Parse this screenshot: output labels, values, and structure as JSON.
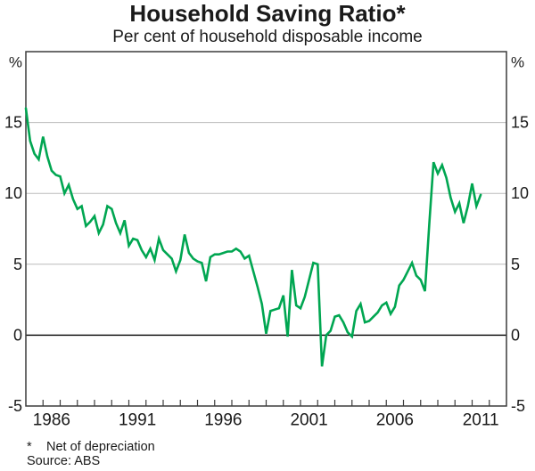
{
  "title": "Household Saving Ratio*",
  "subtitle": "Per cent of household disposable income",
  "footnote": {
    "marker": "*",
    "text": "Net of depreciation"
  },
  "source": "Source: ABS",
  "colors": {
    "line": "#00a651",
    "gridline": "#bcbcbc",
    "zero_line": "#000000",
    "frame": "#3c3c3c",
    "text": "#1a1a1a"
  },
  "chart_data": {
    "type": "line",
    "title": "Household Saving Ratio*",
    "subtitle": "Per cent of household disposable income",
    "unit_label": "%",
    "xlim": [
      1985,
      2013
    ],
    "ylim": [
      -5,
      20
    ],
    "y_ticks": [
      -5,
      0,
      5,
      10,
      15
    ],
    "y_gridlines": [
      5,
      10,
      15
    ],
    "x_minor_tick_years": [
      1986,
      1987,
      1988,
      1989,
      1990,
      1991,
      1992,
      1993,
      1994,
      1995,
      1996,
      1997,
      1998,
      1999,
      2000,
      2001,
      2002,
      2003,
      2004,
      2005,
      2006,
      2007,
      2008,
      2009,
      2010,
      2011,
      2012
    ],
    "x_labels": [
      1986,
      1991,
      1996,
      2001,
      2006,
      2011
    ],
    "grid": "horizontal-only",
    "legend": "none",
    "series": [
      {
        "name": "Household saving ratio (quarterly, per cent)",
        "start_year": 1985,
        "period_years": 0.25,
        "values": [
          16.0,
          13.7,
          12.8,
          12.4,
          14.0,
          12.6,
          11.6,
          11.3,
          11.2,
          10.0,
          10.6,
          9.6,
          8.9,
          9.1,
          7.7,
          8.0,
          8.4,
          7.2,
          7.8,
          9.1,
          8.9,
          7.9,
          7.2,
          8.1,
          6.3,
          6.8,
          6.7,
          6.0,
          5.5,
          6.1,
          5.3,
          6.8,
          6.0,
          5.7,
          5.4,
          4.5,
          5.3,
          7.1,
          5.8,
          5.4,
          5.2,
          5.1,
          3.8,
          5.5,
          5.7,
          5.7,
          5.8,
          5.9,
          5.9,
          6.1,
          5.9,
          5.4,
          5.6,
          4.5,
          3.4,
          2.2,
          0.1,
          1.7,
          1.8,
          1.9,
          2.8,
          -0.1,
          4.6,
          2.1,
          1.9,
          2.7,
          3.9,
          5.1,
          5.0,
          -2.2,
          0.0,
          0.3,
          1.3,
          1.4,
          0.9,
          0.2,
          -0.1,
          1.7,
          2.2,
          0.9,
          1.0,
          1.3,
          1.6,
          2.1,
          2.3,
          1.5,
          2.0,
          3.5,
          3.9,
          4.5,
          5.1,
          4.2,
          3.9,
          3.1,
          7.8,
          12.2,
          11.4,
          12.0,
          11.1,
          9.7,
          8.7,
          9.3,
          7.9,
          9.1,
          10.7,
          9.1,
          9.9
        ]
      }
    ]
  }
}
